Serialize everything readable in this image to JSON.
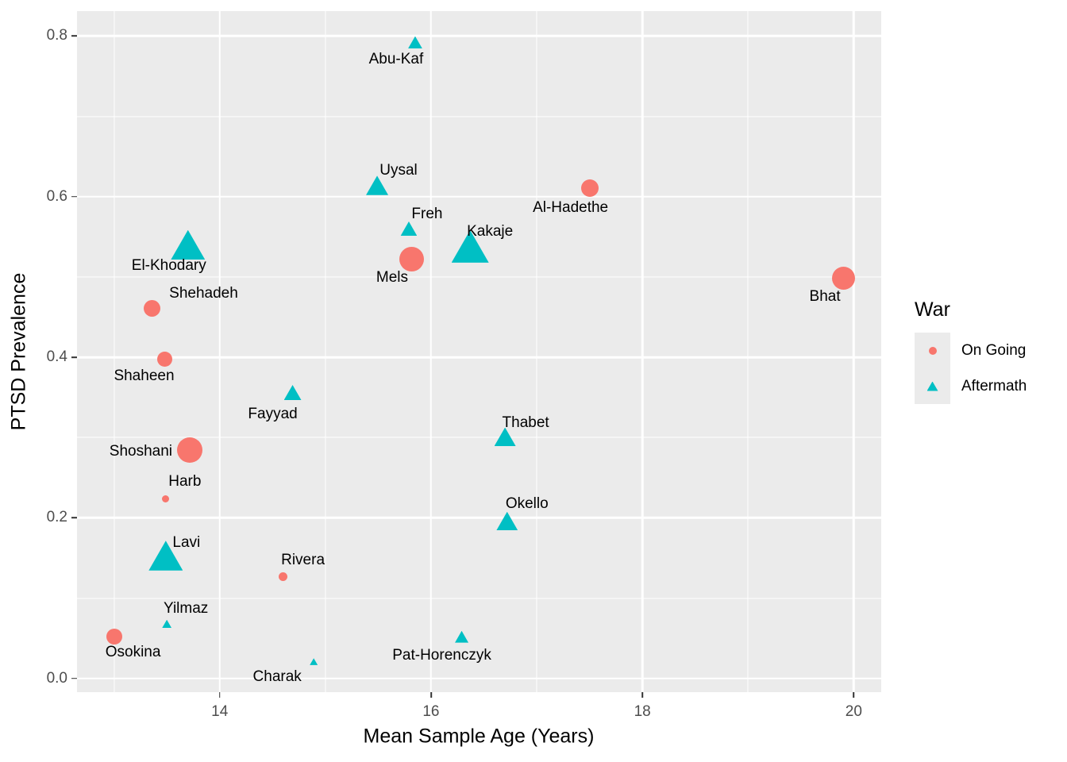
{
  "figure": {
    "background": "#FFFFFF",
    "panel_background": "#EBEBEB",
    "grid_color": "#FFFFFF",
    "tick_mark_color": "#333333",
    "tick_label_color": "#4D4D4D"
  },
  "axes": {
    "x_title": "Mean Sample Age (Years)",
    "y_title": "PTSD Prevalence"
  },
  "legend": {
    "title": "War",
    "items": [
      {
        "label": "On Going",
        "shape": "circle",
        "color": "#F8766D"
      },
      {
        "label": "Aftermath",
        "shape": "triangle",
        "color": "#00BFC4"
      }
    ]
  },
  "chart_data": {
    "type": "scatter",
    "title": "",
    "xlabel": "Mean Sample Age (Years)",
    "ylabel": "PTSD Prevalence",
    "x_domain": [
      12.65,
      20.26
    ],
    "y_domain": [
      -0.017,
      0.831
    ],
    "x_major_ticks": [
      14,
      16,
      18,
      20
    ],
    "x_tick_labels": [
      "14",
      "16",
      "18",
      "20"
    ],
    "x_minor_ticks": [
      13,
      15,
      17,
      19
    ],
    "y_major_ticks": [
      0.0,
      0.2,
      0.4,
      0.6,
      0.8
    ],
    "y_tick_labels": [
      "0.0",
      "0.2",
      "0.4",
      "0.6",
      "0.8"
    ],
    "y_minor_ticks": [
      0.1,
      0.3,
      0.5,
      0.7
    ],
    "grid": "on",
    "legend_position": "right",
    "size_legend_note": "point size varies by study (no size legend shown)",
    "series": [
      {
        "name": "On Going",
        "shape": "circle",
        "color": "#F8766D",
        "points": [
          {
            "label": "Osokina",
            "x": 13.0,
            "y": 0.052,
            "size": 20,
            "label_dx": 24,
            "label_dy": 20
          },
          {
            "label": "Shehadeh",
            "x": 13.36,
            "y": 0.461,
            "size": 21,
            "label_dx": 65,
            "label_dy": -18
          },
          {
            "label": "Shaheen",
            "x": 13.48,
            "y": 0.398,
            "size": 19,
            "label_dx": -26,
            "label_dy": 22
          },
          {
            "label": "Shoshani",
            "x": 13.72,
            "y": 0.284,
            "size": 32,
            "label_dx": -62,
            "label_dy": 2
          },
          {
            "label": "Harb",
            "x": 13.49,
            "y": 0.224,
            "size": 9,
            "label_dx": 24,
            "label_dy": -21
          },
          {
            "label": "Rivera",
            "x": 14.6,
            "y": 0.127,
            "size": 11,
            "label_dx": 25,
            "label_dy": -20
          },
          {
            "label": "Mels",
            "x": 15.82,
            "y": 0.522,
            "size": 31,
            "label_dx": -25,
            "label_dy": 23
          },
          {
            "label": "Al-Hadethe",
            "x": 17.5,
            "y": 0.611,
            "size": 22,
            "label_dx": -24,
            "label_dy": 25
          },
          {
            "label": "Bhat",
            "x": 19.9,
            "y": 0.498,
            "size": 29,
            "label_dx": -23,
            "label_dy": 23
          }
        ]
      },
      {
        "name": "Aftermath",
        "shape": "triangle",
        "color": "#00BFC4",
        "points": [
          {
            "label": "El-Khodary",
            "x": 13.7,
            "y": 0.54,
            "size": 43,
            "label_dx": -24,
            "label_dy": 27
          },
          {
            "label": "Lavi",
            "x": 13.49,
            "y": 0.153,
            "size": 43,
            "label_dx": 26,
            "label_dy": -16
          },
          {
            "label": "Yilmaz",
            "x": 13.5,
            "y": 0.068,
            "size": 12,
            "label_dx": 24,
            "label_dy": -19
          },
          {
            "label": "Fayyad",
            "x": 14.69,
            "y": 0.356,
            "size": 22,
            "label_dx": -25,
            "label_dy": 27
          },
          {
            "label": "Charak",
            "x": 14.89,
            "y": 0.021,
            "size": 10,
            "label_dx": -46,
            "label_dy": 19
          },
          {
            "label": "Abu-Kaf",
            "x": 15.85,
            "y": 0.792,
            "size": 18,
            "label_dx": -24,
            "label_dy": 22
          },
          {
            "label": "Uysal",
            "x": 15.49,
            "y": 0.614,
            "size": 28,
            "label_dx": 27,
            "label_dy": -19
          },
          {
            "label": "Freh",
            "x": 15.79,
            "y": 0.56,
            "size": 21,
            "label_dx": 23,
            "label_dy": -18
          },
          {
            "label": "Kakaje",
            "x": 16.37,
            "y": 0.538,
            "size": 47,
            "label_dx": 25,
            "label_dy": -18
          },
          {
            "label": "Thabet",
            "x": 16.7,
            "y": 0.301,
            "size": 27,
            "label_dx": 26,
            "label_dy": -17
          },
          {
            "label": "Okello",
            "x": 16.72,
            "y": 0.196,
            "size": 27,
            "label_dx": 25,
            "label_dy": -21
          },
          {
            "label": "Pat-Horenczyk",
            "x": 16.29,
            "y": 0.052,
            "size": 17,
            "label_dx": -25,
            "label_dy": 24
          }
        ]
      }
    ]
  }
}
